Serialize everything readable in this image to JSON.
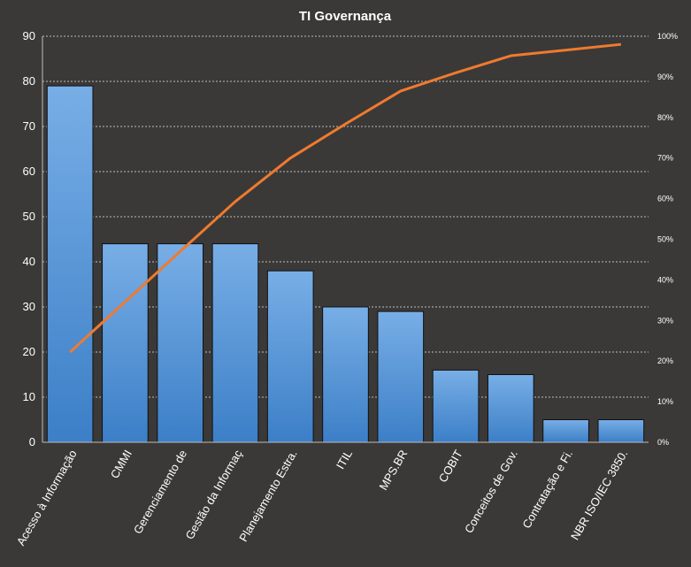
{
  "chart_data": {
    "type": "bar",
    "title": "TI Governança",
    "categories": [
      "Acesso à Informação",
      "CMMI",
      "Gerenciamento de",
      "Gestão da Informaç",
      "Planejamento Estra.",
      "ITIL",
      "MPS.BR",
      "COBIT",
      "Conceitos de Gov.",
      "Contratação e Fi.",
      "NBR ISO/IEC 3850."
    ],
    "series": [
      {
        "type": "bar",
        "values": [
          79,
          44,
          44,
          44,
          38,
          30,
          29,
          16,
          15,
          5,
          5
        ]
      },
      {
        "type": "line",
        "axis": "right",
        "values": [
          22.2,
          34.6,
          47.0,
          59.3,
          70.0,
          78.4,
          86.5,
          91.0,
          95.2,
          96.6,
          98.0
        ]
      }
    ],
    "ylim": [
      0,
      90
    ],
    "y_ticks": [
      "0",
      "10",
      "20",
      "30",
      "40",
      "50",
      "60",
      "70",
      "80",
      "90"
    ],
    "y2lim": [
      0,
      100
    ],
    "y2_ticks": [
      "0%",
      "10%",
      "20%",
      "30%",
      "40%",
      "50%",
      "60%",
      "70%",
      "80%",
      "90%",
      "100%"
    ],
    "grid": true,
    "legend": "none",
    "colors": {
      "background": "#3a3938",
      "bar_top": "#78aee6",
      "bar_bottom": "#3c7fc7",
      "bar_edge": "#111111",
      "line": "#f07a2e",
      "grid": "#bdbdbd",
      "text": "#ffffff"
    }
  }
}
